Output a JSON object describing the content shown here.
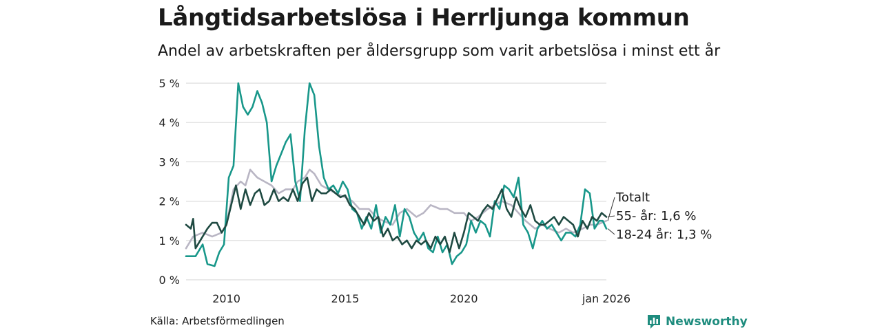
{
  "header": {
    "title": "Långtidsarbetslösa i Herrljunga kommun",
    "subtitle": "Andel av arbetskraften per åldersgrupp som varit arbetslösa i minst ett år"
  },
  "footer": {
    "source": "Källa: Arbetsförmedlingen",
    "brand": "Newsworthy"
  },
  "colors": {
    "totalt": "#b9b6c4",
    "age55": "#1f4a42",
    "age1824": "#18978a",
    "grid": "#dcdcdc",
    "brand": "#1e8c7e"
  },
  "chart_data": {
    "type": "line",
    "title": "Långtidsarbetslösa i Herrljunga kommun",
    "subtitle": "Andel av arbetskraften per åldersgrupp som varit arbetslösa i minst ett år",
    "xlabel": "",
    "ylabel": "",
    "x_unit": "year (decimal)",
    "xlim": [
      2008.3,
      2026.0
    ],
    "ylim": [
      0,
      5
    ],
    "y_ticks": [
      0,
      1,
      2,
      3,
      4,
      5
    ],
    "y_tick_labels": [
      "0 %",
      "1 %",
      "2 %",
      "3 %",
      "4 %",
      "5 %"
    ],
    "x_ticks": [
      2010,
      2015,
      2020,
      2026.0
    ],
    "x_tick_labels": [
      "2010",
      "2015",
      "2020",
      "jan 2026"
    ],
    "grid": true,
    "series": [
      {
        "name": "Totalt",
        "label": "Totalt",
        "color_key": "totalt",
        "x": [
          2008.3,
          2008.6,
          2009.0,
          2009.4,
          2009.8,
          2010.0,
          2010.3,
          2010.6,
          2010.8,
          2011.0,
          2011.3,
          2011.6,
          2011.9,
          2012.2,
          2012.5,
          2012.8,
          2013.0,
          2013.3,
          2013.5,
          2013.7,
          2014.0,
          2014.3,
          2014.6,
          2015.0,
          2015.3,
          2015.6,
          2016.0,
          2016.3,
          2016.6,
          2017.0,
          2017.3,
          2017.6,
          2018.0,
          2018.3,
          2018.6,
          2019.0,
          2019.3,
          2019.6,
          2020.0,
          2020.3,
          2020.6,
          2021.0,
          2021.3,
          2021.6,
          2022.0,
          2022.3,
          2022.6,
          2023.0,
          2023.3,
          2023.6,
          2024.0,
          2024.3,
          2024.6,
          2025.0,
          2025.3,
          2025.6,
          2026.0
        ],
        "y": [
          0.8,
          1.1,
          1.2,
          1.1,
          1.2,
          1.4,
          2.3,
          2.5,
          2.4,
          2.8,
          2.6,
          2.5,
          2.4,
          2.2,
          2.3,
          2.3,
          2.5,
          2.6,
          2.8,
          2.7,
          2.4,
          2.3,
          2.2,
          2.1,
          2.0,
          1.8,
          1.8,
          1.6,
          1.5,
          1.4,
          1.7,
          1.8,
          1.6,
          1.7,
          1.9,
          1.8,
          1.8,
          1.7,
          1.7,
          1.5,
          1.6,
          1.8,
          1.9,
          2.0,
          1.9,
          1.7,
          1.5,
          1.3,
          1.4,
          1.3,
          1.2,
          1.3,
          1.2,
          1.3,
          1.4,
          1.4,
          1.5
        ]
      },
      {
        "name": "55- år",
        "label": "55- år: 1,6 %",
        "color_key": "age55",
        "x": [
          2008.3,
          2008.5,
          2008.6,
          2008.7,
          2009.0,
          2009.2,
          2009.4,
          2009.6,
          2009.8,
          2010.0,
          2010.2,
          2010.4,
          2010.6,
          2010.8,
          2011.0,
          2011.2,
          2011.4,
          2011.6,
          2011.8,
          2012.0,
          2012.2,
          2012.4,
          2012.6,
          2012.8,
          2013.0,
          2013.2,
          2013.4,
          2013.6,
          2013.8,
          2014.0,
          2014.2,
          2014.4,
          2014.6,
          2014.8,
          2015.0,
          2015.2,
          2015.4,
          2015.6,
          2015.8,
          2016.0,
          2016.2,
          2016.4,
          2016.6,
          2016.8,
          2017.0,
          2017.2,
          2017.4,
          2017.6,
          2017.8,
          2018.0,
          2018.2,
          2018.4,
          2018.6,
          2018.8,
          2019.0,
          2019.2,
          2019.4,
          2019.6,
          2019.8,
          2020.0,
          2020.2,
          2020.4,
          2020.6,
          2020.8,
          2021.0,
          2021.2,
          2021.4,
          2021.6,
          2021.8,
          2022.0,
          2022.2,
          2022.4,
          2022.6,
          2022.8,
          2023.0,
          2023.2,
          2023.4,
          2023.6,
          2023.8,
          2024.0,
          2024.2,
          2024.4,
          2024.6,
          2024.8,
          2025.0,
          2025.2,
          2025.4,
          2025.6,
          2025.8,
          2026.0
        ],
        "y": [
          1.4,
          1.3,
          1.55,
          0.8,
          1.1,
          1.3,
          1.45,
          1.45,
          1.2,
          1.4,
          1.9,
          2.4,
          1.8,
          2.3,
          1.9,
          2.2,
          2.3,
          1.9,
          2.0,
          2.3,
          2.0,
          2.1,
          2.0,
          2.3,
          2.0,
          2.45,
          2.6,
          2.0,
          2.3,
          2.2,
          2.2,
          2.3,
          2.2,
          2.1,
          2.15,
          1.9,
          1.8,
          1.6,
          1.4,
          1.7,
          1.5,
          1.6,
          1.1,
          1.3,
          1.0,
          1.1,
          0.9,
          1.0,
          0.8,
          1.0,
          0.9,
          1.0,
          0.8,
          1.1,
          0.9,
          1.1,
          0.7,
          1.2,
          0.8,
          1.2,
          1.7,
          1.6,
          1.5,
          1.75,
          1.9,
          1.8,
          2.05,
          2.3,
          1.8,
          1.6,
          2.1,
          1.8,
          1.6,
          1.9,
          1.5,
          1.4,
          1.4,
          1.5,
          1.6,
          1.4,
          1.6,
          1.5,
          1.4,
          1.1,
          1.5,
          1.3,
          1.6,
          1.5,
          1.7,
          1.6
        ]
      },
      {
        "name": "18-24 år",
        "label": "18-24 år: 1,3 %",
        "color_key": "age1824",
        "x": [
          2008.3,
          2008.7,
          2009.0,
          2009.2,
          2009.5,
          2009.7,
          2009.9,
          2010.1,
          2010.3,
          2010.5,
          2010.7,
          2010.9,
          2011.1,
          2011.3,
          2011.5,
          2011.7,
          2011.9,
          2012.1,
          2012.3,
          2012.5,
          2012.7,
          2012.9,
          2013.1,
          2013.3,
          2013.5,
          2013.7,
          2013.9,
          2014.1,
          2014.3,
          2014.5,
          2014.7,
          2014.9,
          2015.1,
          2015.3,
          2015.5,
          2015.7,
          2015.9,
          2016.1,
          2016.3,
          2016.5,
          2016.7,
          2016.9,
          2017.1,
          2017.3,
          2017.5,
          2017.7,
          2017.9,
          2018.1,
          2018.3,
          2018.5,
          2018.7,
          2018.9,
          2019.1,
          2019.3,
          2019.5,
          2019.7,
          2019.9,
          2020.1,
          2020.3,
          2020.5,
          2020.7,
          2020.9,
          2021.1,
          2021.3,
          2021.5,
          2021.7,
          2021.9,
          2022.1,
          2022.3,
          2022.5,
          2022.7,
          2022.9,
          2023.1,
          2023.3,
          2023.5,
          2023.7,
          2023.9,
          2024.1,
          2024.3,
          2024.5,
          2024.7,
          2024.9,
          2025.1,
          2025.3,
          2025.5,
          2025.7,
          2025.85,
          2026.0
        ],
        "y": [
          0.6,
          0.6,
          0.9,
          0.4,
          0.35,
          0.7,
          0.9,
          2.6,
          2.9,
          5.0,
          4.4,
          4.2,
          4.4,
          4.8,
          4.5,
          4.0,
          2.5,
          2.9,
          3.2,
          3.5,
          3.7,
          2.5,
          2.0,
          3.8,
          5.0,
          4.7,
          3.4,
          2.6,
          2.3,
          2.4,
          2.2,
          2.5,
          2.3,
          1.8,
          1.7,
          1.3,
          1.6,
          1.3,
          1.9,
          1.2,
          1.6,
          1.4,
          1.9,
          1.1,
          1.8,
          1.6,
          1.2,
          1.0,
          1.2,
          0.8,
          0.7,
          1.1,
          0.7,
          0.9,
          0.4,
          0.6,
          0.7,
          0.9,
          1.5,
          1.2,
          1.5,
          1.4,
          1.1,
          2.0,
          1.8,
          2.4,
          2.3,
          2.1,
          2.6,
          1.4,
          1.2,
          0.8,
          1.3,
          1.5,
          1.3,
          1.4,
          1.2,
          1.0,
          1.2,
          1.2,
          1.1,
          1.4,
          2.3,
          2.2,
          1.3,
          1.5,
          1.5,
          1.3
        ]
      }
    ]
  }
}
